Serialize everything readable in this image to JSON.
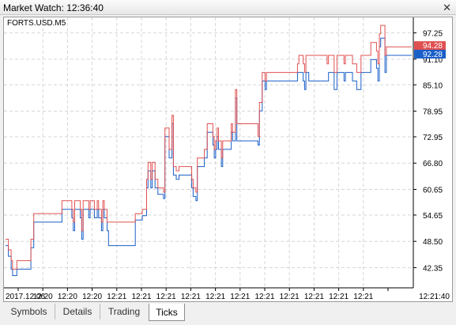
{
  "window": {
    "title": "Market Watch: 12:36:40",
    "close_glyph": "✕"
  },
  "chart": {
    "symbol_label": "FORTS.USD.M5",
    "ask_color": "#e05050",
    "bid_color": "#1a5fc8",
    "ask_badge": "94.28",
    "bid_badge": "92.28",
    "price_ticks": [
      "97.25",
      "91.10",
      "85.10",
      "78.95",
      "72.95",
      "66.80",
      "60.65",
      "54.65",
      "48.50",
      "42.35"
    ],
    "time_ticks": [
      "2017.12.06",
      "12:20",
      "12:20",
      "12:20",
      "12:21",
      "12:21",
      "12:21",
      "12:21",
      "12:21",
      "12:21",
      "12:21",
      "12:21",
      "12:21",
      "12:21",
      "12:21",
      "12:21:40"
    ]
  },
  "chart_data": {
    "type": "line",
    "ylim": [
      38.0,
      100.5
    ],
    "series": [
      {
        "color": "#e05050",
        "values": [
          49,
          49,
          46.5,
          46.5,
          44,
          42,
          42,
          42,
          44,
          44,
          44,
          44,
          44,
          44,
          44,
          44,
          44,
          44,
          49,
          49,
          55,
          55,
          55,
          55,
          55,
          55,
          55,
          55,
          55,
          55,
          55,
          55,
          55,
          55,
          55,
          55,
          55,
          55,
          55,
          55,
          58,
          58,
          58,
          58,
          58,
          58,
          58,
          56,
          53,
          58,
          58,
          58,
          58,
          56,
          51,
          58,
          58,
          58,
          58,
          56,
          58,
          58,
          58,
          56,
          56,
          58,
          56,
          56,
          53,
          58,
          56,
          56,
          53,
          53,
          53,
          53,
          53,
          53,
          53,
          53,
          53,
          53,
          53,
          53,
          53,
          53,
          53,
          53,
          53,
          53,
          53,
          53,
          55,
          55,
          55,
          55,
          55,
          56,
          56,
          56,
          63,
          67,
          67,
          63,
          67,
          67,
          63,
          63,
          61,
          61,
          61,
          61,
          60,
          75,
          75,
          75,
          70,
          70,
          78,
          66,
          66,
          65,
          65,
          66,
          66,
          66,
          66,
          66,
          66,
          66,
          66,
          66,
          63,
          61,
          61,
          60,
          68,
          68,
          68,
          68,
          68,
          70,
          70,
          76,
          76,
          76,
          76,
          73,
          70,
          72,
          75,
          72,
          72,
          68,
          72,
          72,
          72,
          72,
          72,
          72,
          76,
          74,
          74,
          84,
          76,
          76,
          76,
          76,
          76,
          76,
          76,
          76,
          76,
          76,
          76,
          76,
          76,
          76,
          76,
          73,
          81,
          81,
          88,
          88,
          86,
          88,
          88,
          88,
          88,
          88,
          88,
          88,
          88,
          88,
          88,
          88,
          88,
          88,
          88,
          88,
          88,
          88,
          88,
          88,
          88,
          88,
          88,
          90,
          92,
          92,
          92,
          90,
          88,
          92,
          92,
          92,
          92,
          92,
          92,
          92,
          92,
          92,
          92,
          92,
          92,
          92,
          92,
          92,
          90,
          92,
          92,
          92,
          92,
          88,
          88,
          92,
          92,
          92,
          92,
          92,
          90,
          92,
          92,
          92,
          92,
          92,
          90,
          90,
          90,
          88,
          88,
          88,
          92,
          92,
          92,
          92,
          92,
          92,
          92,
          95,
          95,
          95,
          95,
          93,
          90,
          97,
          99,
          99,
          99,
          92,
          94,
          94,
          94,
          94,
          94,
          94,
          94,
          94,
          94,
          94,
          94,
          94,
          94,
          94,
          94,
          94,
          94,
          94,
          94
        ]
      },
      {
        "color": "#1a5fc8",
        "values": [
          47.5,
          47.5,
          45,
          45,
          42,
          40.5,
          40.5,
          40.5,
          42,
          42,
          42,
          42,
          42,
          42,
          42,
          42,
          42,
          42,
          47,
          47,
          53,
          53,
          53,
          53,
          53,
          53,
          53,
          53,
          53,
          53,
          53,
          53,
          53,
          53,
          53,
          53,
          53,
          53,
          53,
          53,
          56,
          56,
          56,
          56,
          56,
          56,
          56,
          54,
          51,
          56,
          56,
          56,
          56,
          54,
          49,
          56,
          56,
          56,
          56,
          54,
          56,
          56,
          56,
          54,
          54,
          56,
          54,
          54,
          51,
          56,
          54,
          54,
          51,
          47.5,
          47.5,
          47.5,
          47.5,
          47.5,
          47.5,
          47.5,
          47.5,
          47.5,
          47.5,
          47.5,
          47.5,
          47.5,
          47.5,
          47.5,
          47.5,
          47.5,
          47.5,
          47.5,
          53.5,
          53.5,
          53.5,
          53.5,
          53.5,
          54.5,
          54.5,
          54.5,
          61,
          65,
          65,
          61,
          65,
          65,
          61,
          61,
          59.5,
          59.5,
          59.5,
          59.5,
          58.5,
          73,
          73,
          73,
          68,
          68,
          76,
          64,
          64,
          63,
          63,
          64,
          64,
          64,
          64,
          64,
          64,
          64,
          64,
          64,
          61,
          59,
          59,
          58,
          66,
          66,
          66,
          66,
          66,
          68,
          68,
          74,
          74,
          74,
          74,
          71,
          68,
          70,
          73,
          70,
          70,
          66,
          70,
          70,
          70,
          70,
          70,
          70,
          74,
          72,
          72,
          82,
          72,
          72,
          72,
          72,
          72,
          72,
          72,
          72,
          72,
          72,
          72,
          72,
          72,
          72,
          72,
          71,
          79,
          79,
          86,
          86,
          84,
          86,
          86,
          86,
          86,
          86,
          86,
          86,
          86,
          86,
          86,
          86,
          86,
          86,
          86,
          86,
          86,
          86,
          86,
          86,
          86,
          86,
          86,
          88,
          88,
          88,
          88,
          86,
          84,
          88,
          88,
          86,
          86,
          86,
          86,
          86,
          86,
          86,
          86,
          86,
          86,
          86,
          86,
          86,
          86,
          88,
          88,
          88,
          88,
          84,
          84,
          88,
          88,
          88,
          88,
          88,
          86,
          88,
          88,
          88,
          88,
          88,
          86,
          86,
          86,
          84,
          84,
          84,
          88,
          88,
          88,
          88,
          88,
          88,
          88,
          91,
          91,
          91,
          91,
          89,
          86,
          94,
          96,
          96,
          96,
          88,
          92,
          92,
          92,
          92,
          92,
          92,
          92,
          92,
          92,
          92,
          92,
          92,
          92,
          92,
          92,
          92,
          92,
          92,
          92
        ]
      }
    ]
  },
  "tabs": [
    {
      "label": "Symbols"
    },
    {
      "label": "Details"
    },
    {
      "label": "Trading"
    },
    {
      "label": "Ticks"
    }
  ]
}
